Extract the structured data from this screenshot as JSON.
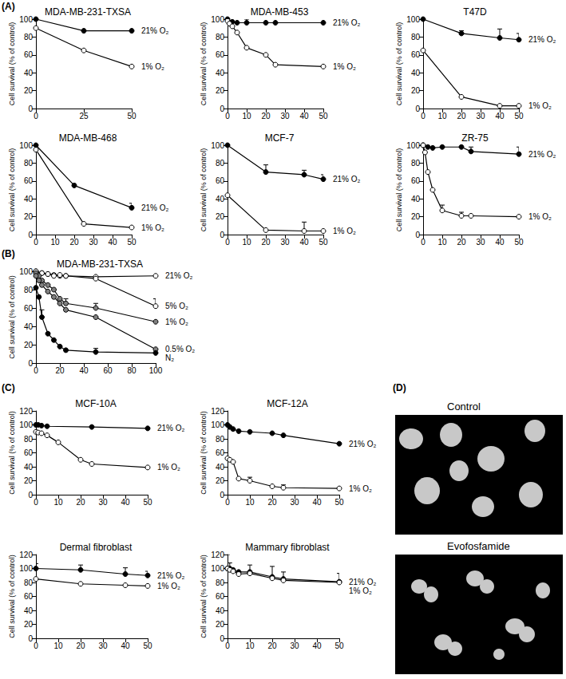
{
  "panel_labels": [
    "(A)",
    "(B)",
    "(C)",
    "(D)"
  ],
  "images": [
    {
      "title": "Control"
    },
    {
      "title": "Evofosfamide"
    }
  ],
  "chart_data": [
    {
      "type": "line",
      "title": "MDA-MB-231-TXSA",
      "y_label": "Cell survival (% of control)",
      "grid": false,
      "xlim": [
        0,
        50
      ],
      "xticks": [
        0,
        25,
        50
      ],
      "ylim": [
        0,
        100
      ],
      "yticks": [
        0,
        20,
        40,
        60,
        80,
        100
      ],
      "series": [
        {
          "name": "21% O₂",
          "color": "#000000",
          "marker": "circle",
          "x": [
            0,
            25,
            50
          ],
          "values": [
            100,
            87,
            87
          ]
        },
        {
          "name": "1% O₂",
          "color": "#ffffff",
          "marker": "circle",
          "x": [
            0,
            25,
            50
          ],
          "values": [
            90,
            65,
            47
          ]
        }
      ]
    },
    {
      "type": "line",
      "title": "MDA-MB-453",
      "y_label": "Cell survival (% of control)",
      "grid": false,
      "xlim": [
        0,
        50
      ],
      "xticks": [
        0,
        10,
        20,
        30,
        40,
        50
      ],
      "ylim": [
        0,
        100
      ],
      "yticks": [
        0,
        20,
        40,
        60,
        80,
        100
      ],
      "series": [
        {
          "name": "21% O₂",
          "color": "#000000",
          "marker": "circle",
          "x": [
            0,
            2.5,
            5,
            10,
            20,
            25,
            50
          ],
          "values": [
            100,
            97,
            96,
            96,
            96,
            96,
            96
          ],
          "errors": [
            null,
            null,
            null,
            4,
            null,
            null,
            null
          ]
        },
        {
          "name": "1% O₂",
          "color": "#ffffff",
          "marker": "circle",
          "x": [
            0,
            1,
            2.5,
            5,
            10,
            20,
            25,
            50
          ],
          "values": [
            98,
            95,
            92,
            85,
            68,
            60,
            49,
            47
          ]
        }
      ]
    },
    {
      "type": "line",
      "title": "T47D",
      "y_label": "Cell survival (% of control)",
      "grid": false,
      "xlim": [
        0,
        50
      ],
      "xticks": [
        0,
        10,
        20,
        30,
        40,
        50
      ],
      "ylim": [
        0,
        100
      ],
      "yticks": [
        0,
        20,
        40,
        60,
        80,
        100
      ],
      "series": [
        {
          "name": "21% O₂",
          "color": "#000000",
          "marker": "circle",
          "x": [
            0,
            20,
            40,
            50
          ],
          "values": [
            100,
            84,
            79,
            77
          ],
          "errors": [
            null,
            3,
            10,
            7
          ]
        },
        {
          "name": "1% O₂",
          "color": "#ffffff",
          "marker": "circle",
          "x": [
            0,
            20,
            40,
            50
          ],
          "values": [
            65,
            13,
            3,
            3
          ]
        }
      ]
    },
    {
      "type": "line",
      "title": "MDA-MB-468",
      "y_label": "Cell survival (% of control)",
      "grid": false,
      "xlim": [
        0,
        50
      ],
      "xticks": [
        0,
        10,
        20,
        30,
        40,
        50
      ],
      "ylim": [
        0,
        100
      ],
      "yticks": [
        0,
        20,
        40,
        60,
        80,
        100
      ],
      "series": [
        {
          "name": "21% O₂",
          "color": "#000000",
          "marker": "circle",
          "x": [
            0,
            20,
            50
          ],
          "values": [
            100,
            55,
            30
          ],
          "errors": [
            null,
            null,
            5
          ]
        },
        {
          "name": "1% O₂",
          "color": "#ffffff",
          "marker": "circle",
          "x": [
            0,
            25,
            50
          ],
          "values": [
            95,
            12,
            8
          ]
        }
      ]
    },
    {
      "type": "line",
      "title": "MCF-7",
      "y_label": "Cell survival (% of control)",
      "grid": false,
      "xlim": [
        0,
        50
      ],
      "xticks": [
        0,
        10,
        20,
        30,
        40,
        50
      ],
      "ylim": [
        0,
        100
      ],
      "yticks": [
        0,
        20,
        40,
        60,
        80,
        100
      ],
      "series": [
        {
          "name": "21% O₂",
          "color": "#000000",
          "marker": "circle",
          "x": [
            0,
            20,
            40,
            50
          ],
          "values": [
            100,
            70,
            67,
            62
          ],
          "errors": [
            null,
            8,
            5,
            5
          ]
        },
        {
          "name": "1% O₂",
          "color": "#ffffff",
          "marker": "circle",
          "x": [
            0,
            20,
            40,
            50
          ],
          "values": [
            44,
            5,
            4,
            4
          ],
          "errors": [
            null,
            null,
            10,
            null
          ]
        }
      ]
    },
    {
      "type": "line",
      "title": "ZR-75",
      "y_label": "Cell survival (% of control)",
      "grid": false,
      "xlim": [
        0,
        50
      ],
      "xticks": [
        0,
        10,
        20,
        30,
        40,
        50
      ],
      "ylim": [
        0,
        100
      ],
      "yticks": [
        0,
        20,
        40,
        60,
        80,
        100
      ],
      "series": [
        {
          "name": "21% O₂",
          "color": "#000000",
          "marker": "circle",
          "x": [
            0,
            2.5,
            5,
            10,
            20,
            25,
            50
          ],
          "values": [
            100,
            98,
            97,
            98,
            98,
            93,
            90
          ],
          "errors": [
            null,
            null,
            null,
            4,
            4,
            5,
            8
          ]
        },
        {
          "name": "1% O₂",
          "color": "#ffffff",
          "marker": "circle",
          "x": [
            0,
            1,
            2.5,
            5,
            10,
            20,
            25,
            50
          ],
          "values": [
            100,
            92,
            70,
            50,
            27,
            21,
            21,
            20
          ],
          "errors": [
            null,
            null,
            null,
            null,
            6,
            4,
            null,
            null
          ]
        }
      ]
    },
    {
      "type": "line",
      "title": "MDA-MB-231-TXSA",
      "y_label": "Cell survival (% of control)",
      "grid": false,
      "xlim": [
        0,
        100
      ],
      "xticks": [
        0,
        20,
        40,
        60,
        80,
        100
      ],
      "ylim": [
        0,
        100
      ],
      "yticks": [
        0,
        20,
        40,
        60,
        80,
        100
      ],
      "series": [
        {
          "name": "21% O₂",
          "color": "#ffffff",
          "marker": "circle",
          "x": [
            0,
            5,
            10,
            15,
            20,
            25,
            50,
            100
          ],
          "values": [
            100,
            98,
            97,
            96,
            95,
            95,
            94,
            95
          ]
        },
        {
          "name": "5% O₂",
          "color": "#ffffff",
          "marker": "circle",
          "x": [
            0,
            5,
            10,
            15,
            20,
            25,
            50,
            100
          ],
          "values": [
            100,
            98,
            97,
            95,
            96,
            95,
            92,
            62
          ],
          "errors": [
            null,
            null,
            null,
            null,
            null,
            null,
            null,
            8
          ]
        },
        {
          "name": "1% O₂",
          "color": "#808080",
          "marker": "circle",
          "x": [
            0,
            2.5,
            5,
            10,
            15,
            20,
            25,
            50,
            100
          ],
          "values": [
            98,
            95,
            90,
            85,
            80,
            70,
            65,
            60,
            45
          ],
          "errors": [
            null,
            null,
            null,
            null,
            null,
            null,
            5,
            5,
            null
          ]
        },
        {
          "name": "0.5% O₂",
          "color": "#808080",
          "marker": "circle",
          "x": [
            0,
            2.5,
            5,
            10,
            15,
            20,
            25,
            50,
            100
          ],
          "values": [
            95,
            90,
            85,
            78,
            72,
            65,
            58,
            50,
            15
          ]
        },
        {
          "name": "N₂",
          "color": "#000000",
          "marker": "circle",
          "x": [
            0,
            2.5,
            5,
            10,
            15,
            20,
            25,
            50,
            100
          ],
          "values": [
            82,
            72,
            50,
            32,
            25,
            18,
            14,
            12,
            11
          ],
          "errors": [
            null,
            null,
            8,
            null,
            null,
            null,
            null,
            4,
            null
          ]
        }
      ]
    },
    {
      "type": "line",
      "title": "MCF-10A",
      "y_label": "Cell survival (% of control)",
      "grid": false,
      "xlim": [
        0,
        50
      ],
      "xticks": [
        0,
        10,
        20,
        30,
        40,
        50
      ],
      "ylim": [
        0,
        120
      ],
      "yticks": [
        0,
        20,
        40,
        60,
        80,
        100,
        120
      ],
      "series": [
        {
          "name": "21% O₂",
          "color": "#000000",
          "marker": "circle",
          "x": [
            0,
            1,
            2.5,
            5,
            25,
            50
          ],
          "values": [
            100,
            100,
            99,
            98,
            97,
            95
          ]
        },
        {
          "name": "1% O₂",
          "color": "#ffffff",
          "marker": "circle",
          "x": [
            0,
            1,
            2.5,
            5,
            10,
            20,
            25,
            50
          ],
          "values": [
            90,
            89,
            88,
            85,
            75,
            50,
            44,
            39
          ]
        }
      ]
    },
    {
      "type": "line",
      "title": "MCF-12A",
      "y_label": "Cell survival (% of control)",
      "grid": false,
      "xlim": [
        0,
        50
      ],
      "xticks": [
        0,
        10,
        20,
        30,
        40,
        50
      ],
      "ylim": [
        0,
        120
      ],
      "yticks": [
        0,
        20,
        40,
        60,
        80,
        100,
        120
      ],
      "series": [
        {
          "name": "21% O₂",
          "color": "#000000",
          "marker": "circle",
          "x": [
            0,
            1,
            2.5,
            5,
            10,
            20,
            25,
            50
          ],
          "values": [
            100,
            97,
            94,
            91,
            90,
            88,
            85,
            73
          ]
        },
        {
          "name": "1% O₂",
          "color": "#ffffff",
          "marker": "circle",
          "x": [
            0,
            1,
            2.5,
            5,
            10,
            20,
            25,
            50
          ],
          "values": [
            52,
            50,
            47,
            23,
            20,
            12,
            10,
            9
          ],
          "errors": [
            null,
            null,
            null,
            null,
            5,
            null,
            4,
            null
          ]
        }
      ]
    },
    {
      "type": "line",
      "title": "Dermal fibroblast",
      "y_label": "Cell survival (% of control)",
      "grid": false,
      "xlim": [
        0,
        50
      ],
      "xticks": [
        0,
        10,
        20,
        30,
        40,
        50
      ],
      "ylim": [
        0,
        120
      ],
      "yticks": [
        0,
        20,
        40,
        60,
        80,
        100,
        120
      ],
      "series": [
        {
          "name": "21% O₂",
          "color": "#000000",
          "marker": "circle",
          "x": [
            0,
            20,
            40,
            50
          ],
          "values": [
            100,
            98,
            92,
            90
          ],
          "errors": [
            7,
            7,
            9,
            6
          ]
        },
        {
          "name": "1% O₂",
          "color": "#ffffff",
          "marker": "circle",
          "x": [
            0,
            20,
            40,
            50
          ],
          "values": [
            85,
            78,
            76,
            75
          ]
        }
      ]
    },
    {
      "type": "line",
      "title": "Mammary fibroblast",
      "y_label": "Cell survival (% of control)",
      "grid": false,
      "xlim": [
        0,
        50
      ],
      "xticks": [
        0,
        10,
        20,
        30,
        40,
        50
      ],
      "ylim": [
        0,
        120
      ],
      "yticks": [
        0,
        20,
        40,
        60,
        80,
        100,
        120
      ],
      "series": [
        {
          "name": "21% O₂",
          "color": "#000000",
          "marker": "circle",
          "x": [
            0,
            1,
            2.5,
            5,
            10,
            20,
            25,
            50
          ],
          "values": [
            100,
            100,
            98,
            95,
            95,
            88,
            85,
            81
          ],
          "errors": [
            20,
            8,
            null,
            null,
            10,
            15,
            10,
            12
          ]
        },
        {
          "name": "1% O₂",
          "color": "#ffffff",
          "marker": "circle",
          "x": [
            0,
            1,
            2.5,
            5,
            10,
            20,
            25,
            50
          ],
          "values": [
            100,
            98,
            96,
            92,
            93,
            86,
            83,
            80
          ]
        }
      ]
    }
  ]
}
